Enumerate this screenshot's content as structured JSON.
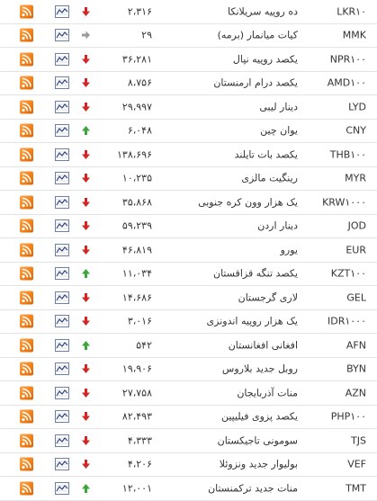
{
  "colors": {
    "up": "#3aa73a",
    "down": "#d42525",
    "same": "#9a9a9a",
    "rss": "#f07d14"
  },
  "rows": [
    {
      "code": "LKR۱۰",
      "name": "ده روپیه سریلانکا",
      "price": "۲،۳۱۶",
      "trend": "down"
    },
    {
      "code": "MMK",
      "name": "کیات میانمار (برمه)",
      "price": "۲۹",
      "trend": "same"
    },
    {
      "code": "NPR۱۰۰",
      "name": "یکصد روپیه نپال",
      "price": "۳۶،۲۸۱",
      "trend": "down"
    },
    {
      "code": "AMD۱۰۰",
      "name": "یکصد درام ارمنستان",
      "price": "۸،۷۵۶",
      "trend": "down"
    },
    {
      "code": "LYD",
      "name": "دینار لیبی",
      "price": "۲۹،۹۹۷",
      "trend": "down"
    },
    {
      "code": "CNY",
      "name": "یوان چین",
      "price": "۶،۰۴۸",
      "trend": "up"
    },
    {
      "code": "THB۱۰۰",
      "name": "یکصد بات تایلند",
      "price": "۱۳۸،۶۹۶",
      "trend": "down"
    },
    {
      "code": "MYR",
      "name": "رینگیت مالزی",
      "price": "۱۰،۲۳۵",
      "trend": "down"
    },
    {
      "code": "KRW۱۰۰۰",
      "name": "یک هزار وون کره جنوبی",
      "price": "۳۵،۸۶۸",
      "trend": "down"
    },
    {
      "code": "JOD",
      "name": "دینار اردن",
      "price": "۵۹،۲۳۹",
      "trend": "down"
    },
    {
      "code": "EUR",
      "name": "یورو",
      "price": "۴۶،۸۱۹",
      "trend": "down"
    },
    {
      "code": "KZT۱۰۰",
      "name": "یکصد تنگه قزاقستان",
      "price": "۱۱،۰۳۴",
      "trend": "up"
    },
    {
      "code": "GEL",
      "name": "لاری گرجستان",
      "price": "۱۴،۶۸۶",
      "trend": "down"
    },
    {
      "code": "IDR۱۰۰۰",
      "name": "یک هزار روپیه اندونزی",
      "price": "۳،۰۱۶",
      "trend": "down"
    },
    {
      "code": "AFN",
      "name": "افغانی افغانستان",
      "price": "۵۴۲",
      "trend": "up"
    },
    {
      "code": "BYN",
      "name": "روبل جدید بلاروس",
      "price": "۱۹،۹۰۶",
      "trend": "down"
    },
    {
      "code": "AZN",
      "name": "منات آذربایجان",
      "price": "۲۷،۷۵۸",
      "trend": "down"
    },
    {
      "code": "PHP۱۰۰",
      "name": "یکصد پزوی فیلیپین",
      "price": "۸۲،۴۹۳",
      "trend": "down"
    },
    {
      "code": "TJS",
      "name": "سومونی تاجیکستان",
      "price": "۴،۳۳۳",
      "trend": "down"
    },
    {
      "code": "VEF",
      "name": "بولیوار جدید ونزوئلا",
      "price": "۴،۲۰۶",
      "trend": "down"
    },
    {
      "code": "TMT",
      "name": "منات جدید ترکمنستان",
      "price": "۱۲،۰۰۱",
      "trend": "up"
    }
  ]
}
